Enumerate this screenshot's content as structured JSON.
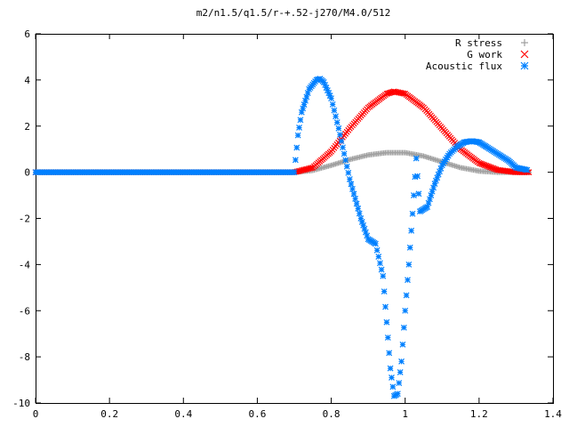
{
  "chart_data": {
    "type": "scatter",
    "title": "m2/n1.5/q1.5/r-+.52-j270/M4.0/512",
    "xlabel": "",
    "ylabel": "",
    "xlim": [
      0,
      1.4
    ],
    "ylim": [
      -10,
      6
    ],
    "x_ticks": [
      "0",
      "0.2",
      "0.4",
      "0.6",
      "0.8",
      "1",
      "1.2",
      "1.4"
    ],
    "y_ticks": [
      "6",
      "4",
      "2",
      "0",
      "-2",
      "-4",
      "-6",
      "-8",
      "-10"
    ],
    "grid": false,
    "legend_position": "top-right",
    "colors": {
      "r_stress": "#a0a0a0",
      "g_work": "#ff0000",
      "acoustic_flux": "#0080ff"
    },
    "series": [
      {
        "name": "R stress",
        "marker": "plus",
        "x": [
          0,
          0.7,
          0.75,
          0.8,
          0.85,
          0.9,
          0.95,
          1.0,
          1.05,
          1.1,
          1.15,
          1.2,
          1.25,
          1.3,
          1.335
        ],
        "values": [
          0,
          0,
          0.08,
          0.3,
          0.55,
          0.75,
          0.85,
          0.85,
          0.7,
          0.45,
          0.2,
          0.05,
          0,
          0,
          0
        ]
      },
      {
        "name": "G work",
        "marker": "cross",
        "x": [
          0,
          0.7,
          0.75,
          0.8,
          0.85,
          0.9,
          0.95,
          0.97,
          1.0,
          1.05,
          1.1,
          1.15,
          1.2,
          1.25,
          1.3,
          1.335
        ],
        "values": [
          0,
          0,
          0.2,
          0.9,
          1.9,
          2.8,
          3.4,
          3.5,
          3.4,
          2.8,
          1.9,
          1.0,
          0.4,
          0.1,
          0,
          0
        ]
      },
      {
        "name": "Acoustic flux",
        "marker": "star",
        "x": [
          0,
          0.7,
          0.71,
          0.72,
          0.74,
          0.76,
          0.77,
          0.78,
          0.8,
          0.82,
          0.85,
          0.88,
          0.9,
          0.92,
          0.94,
          0.95,
          0.96,
          0.97,
          0.98,
          0.99,
          1.0,
          1.01,
          1.02,
          1.03,
          1.04,
          1.06,
          1.08,
          1.1,
          1.12,
          1.14,
          1.16,
          1.18,
          1.2,
          1.22,
          1.25,
          1.28,
          1.3,
          1.33
        ],
        "values": [
          0,
          0,
          1.6,
          2.6,
          3.6,
          4.0,
          4.05,
          3.9,
          3.2,
          1.9,
          -0.3,
          -2.0,
          -2.9,
          -3.1,
          -4.5,
          -6.5,
          -8.5,
          -9.7,
          -9.6,
          -8.2,
          -6.0,
          -4.0,
          -1.8,
          0.6,
          -1.7,
          -1.5,
          -0.5,
          0.3,
          0.8,
          1.1,
          1.3,
          1.35,
          1.3,
          1.1,
          0.8,
          0.5,
          0.2,
          0.1
        ]
      }
    ]
  }
}
